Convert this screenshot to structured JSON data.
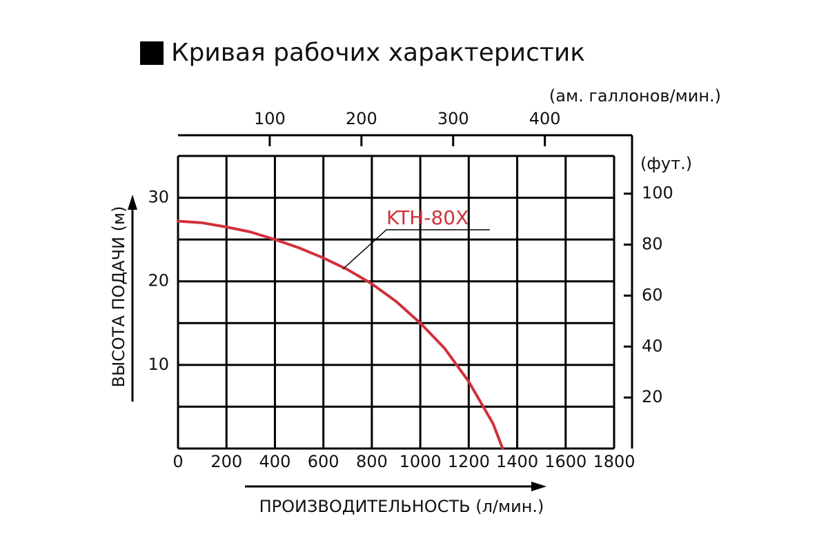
{
  "chart_data": {
    "type": "line",
    "title": "Кривая рабочих характеристик",
    "xlabel": "ПРОИЗВОДИТЕЛЬНОСТЬ (л/мин.)",
    "ylabel": "ВЫСОТА ПОДАЧИ (м)",
    "x2label": "(ам. галлонов/мин.)",
    "y2label": "(фут.)",
    "x": [
      0,
      100,
      200,
      300,
      400,
      500,
      600,
      700,
      800,
      900,
      1000,
      1100,
      1200,
      1300,
      1340
    ],
    "series": [
      {
        "name": "KTH-80X",
        "color": "#d0313a",
        "values": [
          27.2,
          27.0,
          26.5,
          25.9,
          25.0,
          24.0,
          22.8,
          21.4,
          19.7,
          17.6,
          15.0,
          12.0,
          8.0,
          3.0,
          0
        ]
      }
    ],
    "xlim": [
      0,
      1800
    ],
    "xticks": [
      0,
      200,
      400,
      600,
      800,
      1000,
      1200,
      1400,
      1600,
      1800
    ],
    "ylim": [
      0,
      35
    ],
    "yticks": [
      10,
      20,
      30
    ],
    "yminor": [
      5,
      15,
      25,
      35
    ],
    "x2lim": [
      0,
      475.5
    ],
    "x2ticks": [
      100,
      200,
      300,
      400
    ],
    "y2lim": [
      0,
      114.8
    ],
    "y2ticks": [
      20,
      40,
      60,
      80,
      100
    ],
    "grid": true
  }
}
